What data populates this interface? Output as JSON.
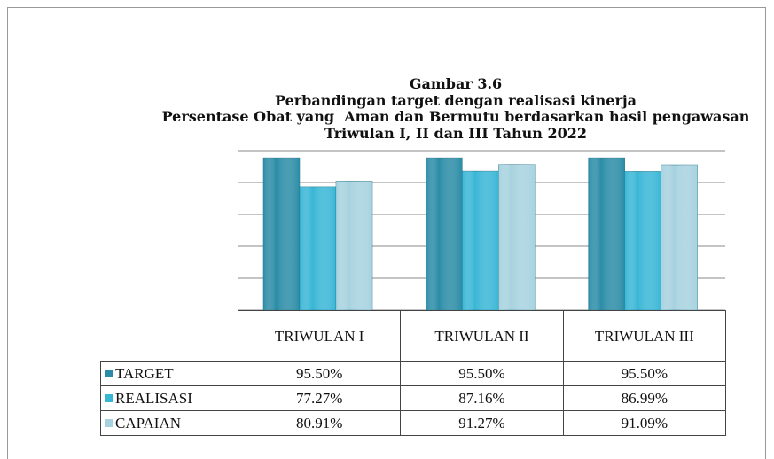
{
  "chart_data": {
    "type": "bar",
    "title": [
      "Gambar 3.6",
      "Perbandingan target dengan realisasi kinerja",
      "Persentase Obat yang  Aman dan Bermutu berdasarkan hasil pengawasan",
      "Triwulan I, II dan III Tahun 2022"
    ],
    "categories": [
      "TRIWULAN I",
      "TRIWULAN II",
      "TRIWULAN III"
    ],
    "series": [
      {
        "name": "TARGET",
        "color": "#2a8ca6",
        "values": [
          95.5,
          95.5,
          95.5
        ],
        "value_labels": [
          "95.50%",
          "95.50%",
          "95.50%"
        ]
      },
      {
        "name": "REALISASI",
        "color": "#38b6d6",
        "values": [
          77.27,
          87.16,
          86.99
        ],
        "value_labels": [
          "77.27%",
          "87.16%",
          "86.99%"
        ]
      },
      {
        "name": "CAPAIAN",
        "color": "#a6d2df",
        "values": [
          80.91,
          91.27,
          91.09
        ],
        "value_labels": [
          "80.91%",
          "91.27%",
          "91.09%"
        ]
      }
    ],
    "ylim": [
      0,
      100
    ],
    "yticks": [
      0,
      20,
      40,
      60,
      80,
      100
    ],
    "grid": true
  }
}
